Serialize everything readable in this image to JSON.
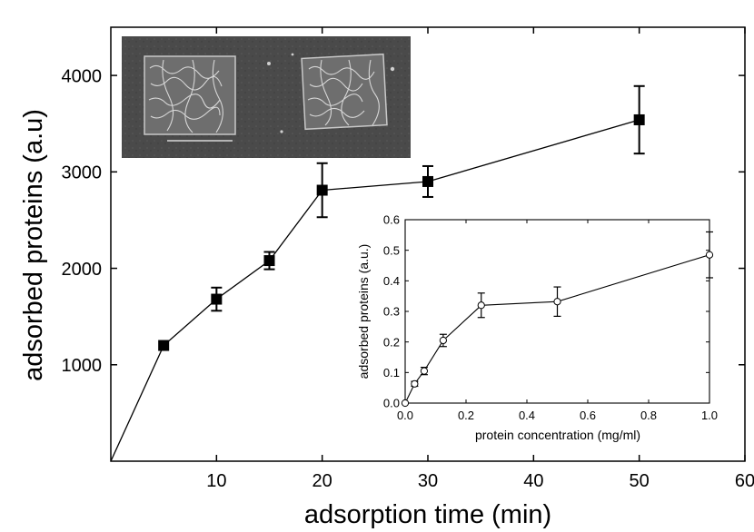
{
  "chart_data": [
    {
      "type": "line",
      "xlabel": "adsorption time (min)",
      "ylabel": "adsorbed proteins (a.u)",
      "xlim": [
        0,
        60
      ],
      "ylim": [
        0,
        4500
      ],
      "x_ticks": [
        10,
        20,
        30,
        40,
        50,
        60
      ],
      "y_ticks": [
        1000,
        2000,
        3000,
        4000
      ],
      "marker": "filled-square",
      "color": "#000000",
      "series": [
        {
          "x": [
            0,
            5,
            10,
            15,
            20,
            30,
            50
          ],
          "y": [
            0,
            1200,
            1680,
            2080,
            2810,
            2900,
            3540
          ],
          "error": [
            0,
            0,
            120,
            90,
            280,
            160,
            350
          ]
        }
      ]
    },
    {
      "type": "line",
      "xlabel": "protein concentration (mg/ml)",
      "ylabel": "adsorbed proteins (a.u.)",
      "xlim": [
        0,
        1
      ],
      "ylim": [
        0,
        0.6
      ],
      "x_ticks": [
        "0.0",
        "0.2",
        "0.4",
        "0.6",
        "0.8",
        "1.0"
      ],
      "y_ticks": [
        "0.0",
        "0.1",
        "0.2",
        "0.3",
        "0.4",
        "0.5",
        "0.6"
      ],
      "marker": "open-circle",
      "color": "#000000",
      "series": [
        {
          "x": [
            0,
            0.031,
            0.0625,
            0.125,
            0.25,
            0.5,
            1.0
          ],
          "y": [
            0,
            0.063,
            0.105,
            0.205,
            0.32,
            0.332,
            0.485
          ],
          "error": [
            0,
            0.008,
            0.012,
            0.02,
            0.04,
            0.048,
            0.075
          ]
        }
      ]
    }
  ],
  "micrograph": {
    "icon": "cell-micrograph-image"
  }
}
